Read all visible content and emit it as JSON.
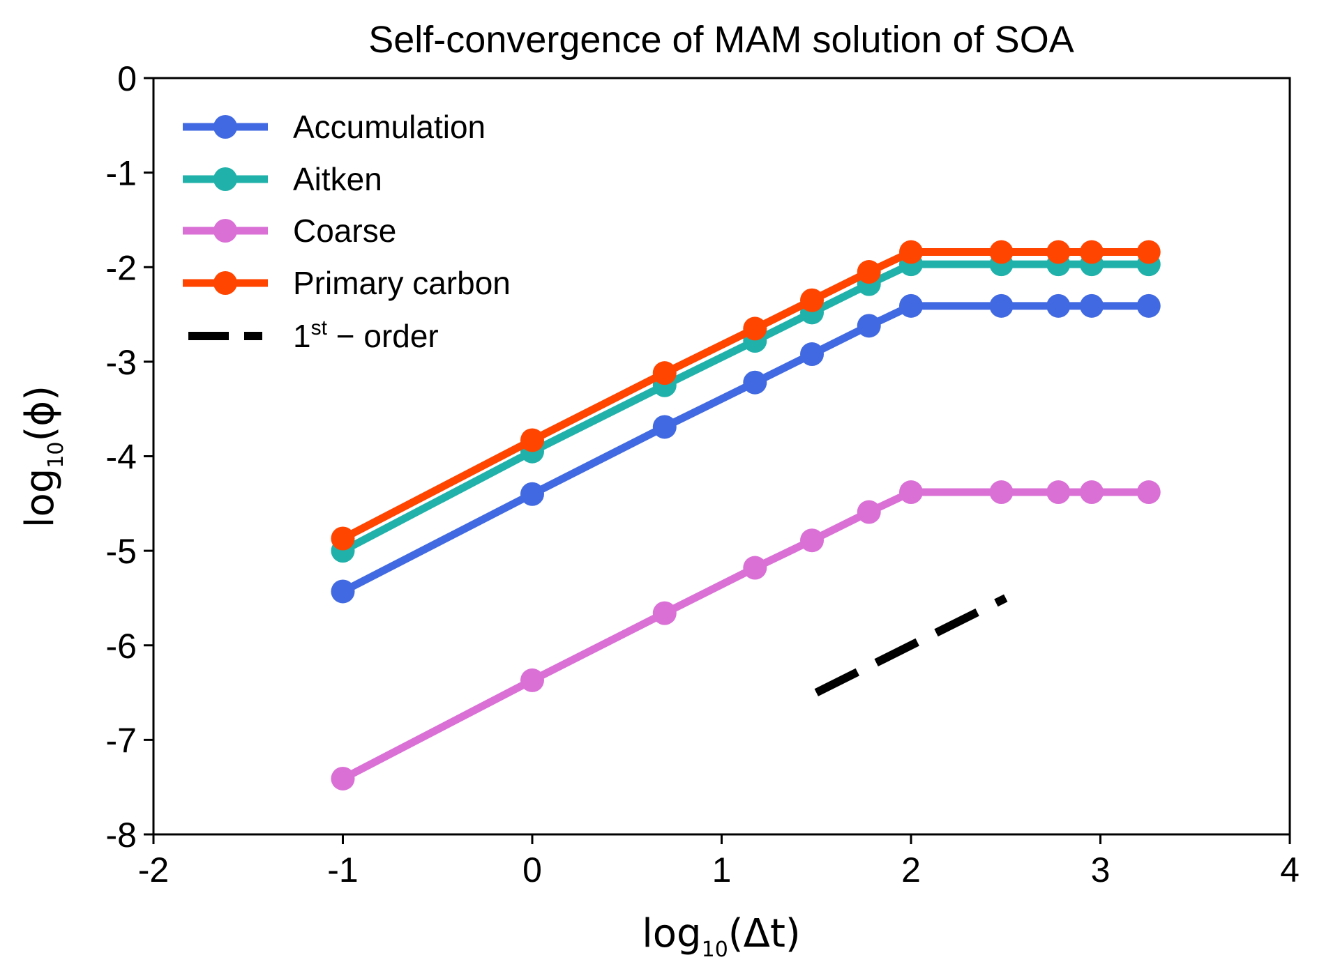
{
  "chart_data": {
    "type": "line",
    "title": "Self-convergence of MAM solution of SOA",
    "xlabel": {
      "base": "log",
      "sub": "10",
      "arg": "(Δt)"
    },
    "ylabel": {
      "base": "log",
      "sub": "10",
      "arg": "(ϕ)"
    },
    "xlim": [
      -2,
      4
    ],
    "ylim": [
      -8,
      0
    ],
    "xticks": [
      -2,
      -1,
      0,
      1,
      2,
      3,
      4
    ],
    "yticks": [
      -8,
      -7,
      -6,
      -5,
      -4,
      -3,
      -2,
      -1,
      0
    ],
    "xtick_labels": [
      "-2",
      "-1",
      "0",
      "1",
      "2",
      "3",
      "4"
    ],
    "ytick_labels": [
      "-8",
      "-7",
      "-6",
      "-5",
      "-4",
      "-3",
      "-2",
      "-1",
      "0"
    ],
    "grid": false,
    "legend_position": "top-left",
    "x": [
      -1,
      0,
      0.699,
      1.176,
      1.477,
      1.778,
      2,
      2.477,
      2.778,
      2.954,
      3.255
    ],
    "series": [
      {
        "name": "Accumulation",
        "color": "#4169E1",
        "marker": "circle",
        "values": [
          -5.43,
          -4.4,
          -3.69,
          -3.22,
          -2.92,
          -2.62,
          -2.41,
          -2.41,
          -2.41,
          -2.41,
          -2.41
        ]
      },
      {
        "name": "Aitken",
        "color": "#20B2AA",
        "marker": "circle",
        "values": [
          -5.0,
          -3.95,
          -3.25,
          -2.78,
          -2.48,
          -2.18,
          -1.97,
          -1.97,
          -1.97,
          -1.97,
          -1.97
        ]
      },
      {
        "name": "Coarse",
        "color": "#DA70D6",
        "marker": "circle",
        "values": [
          -7.41,
          -6.37,
          -5.66,
          -5.18,
          -4.89,
          -4.59,
          -4.38,
          -4.38,
          -4.38,
          -4.38,
          -4.38
        ]
      },
      {
        "name": "Primary carbon",
        "color": "#FF4500",
        "marker": "circle",
        "values": [
          -4.87,
          -3.83,
          -3.12,
          -2.65,
          -2.35,
          -2.05,
          -1.84,
          -1.84,
          -1.84,
          -1.84,
          -1.84
        ]
      }
    ],
    "reference_line": {
      "label_base": "1",
      "label_sup": "st",
      "label_rest": " − order",
      "color": "#000000",
      "style": "dashed",
      "x": [
        1.5,
        2.5
      ],
      "y": [
        -6.5,
        -5.5
      ]
    }
  }
}
